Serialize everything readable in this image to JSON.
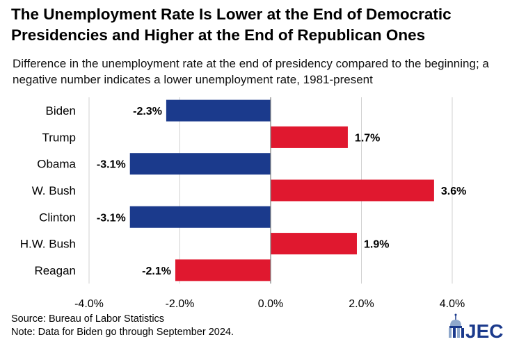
{
  "title": "The Unemployment Rate Is Lower at the End of Democratic Presidencies and Higher at the End of Republican Ones",
  "subtitle": "Difference in the unemployment rate at the end of presidency compared to the beginning; a negative number indicates a lower unemployment rate, 1981-present",
  "source": "Source: Bureau of Labor Statistics",
  "note": "Note: Data for Biden go through September 2024.",
  "logo_text": "JEC",
  "colors": {
    "democratic": "#1b3a8c",
    "republican": "#e0182f",
    "gridline": "#d0d0d0",
    "axis": "#7f7f7f"
  },
  "chart_data": {
    "type": "bar",
    "orientation": "horizontal",
    "categories": [
      "Biden",
      "Trump",
      "Obama",
      "W. Bush",
      "Clinton",
      "H.W. Bush",
      "Reagan"
    ],
    "values": [
      -2.3,
      1.7,
      -3.1,
      3.6,
      -3.1,
      1.9,
      -2.1
    ],
    "data_labels": [
      "-2.3%",
      "1.7%",
      "-3.1%",
      "3.6%",
      "-3.1%",
      "1.9%",
      "-2.1%"
    ],
    "party": [
      "democratic",
      "republican",
      "democratic",
      "republican",
      "democratic",
      "republican",
      "republican"
    ],
    "xlim": [
      -4.0,
      4.0
    ],
    "xticks": [
      -4.0,
      -2.0,
      0.0,
      2.0,
      4.0
    ],
    "xtick_labels": [
      "-4.0%",
      "-2.0%",
      "0.0%",
      "2.0%",
      "4.0%"
    ],
    "grid": "vertical",
    "legend": "none"
  }
}
